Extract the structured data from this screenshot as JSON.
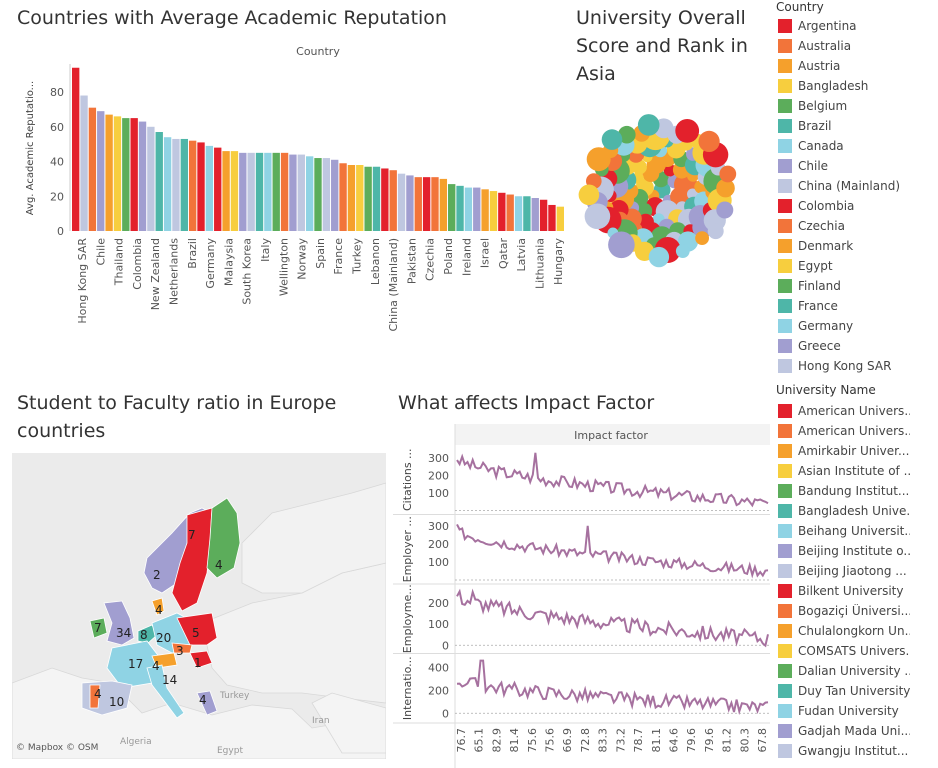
{
  "dashboard": {
    "titles": {
      "bar": "Countries with Average Academic Reputation",
      "bubble": "University Overall Score and Rank in Asia",
      "map": "Student to Faculty ratio in Europe countries",
      "lines": "What affects Impact Factor"
    },
    "map_credit": "© Mapbox  © OSM",
    "map_labels": {
      "turkey": "Turkey",
      "iran": "Iran",
      "algeria": "Algeria",
      "egypt": "Egypt"
    },
    "map_values": [
      "7",
      "4",
      "2",
      "4",
      "7",
      "34",
      "8",
      "20",
      "5",
      "3",
      "1",
      "17",
      "4",
      "14",
      "4",
      "10",
      "4"
    ]
  },
  "legend_country": {
    "title": "Country",
    "items": [
      {
        "label": "Argentina",
        "color": "#e3212c"
      },
      {
        "label": "Australia",
        "color": "#f2743a"
      },
      {
        "label": "Austria",
        "color": "#f5a02c"
      },
      {
        "label": "Bangladesh",
        "color": "#f7ce3e"
      },
      {
        "label": "Belgium",
        "color": "#5cad5b"
      },
      {
        "label": "Brazil",
        "color": "#4eb6a8"
      },
      {
        "label": "Canada",
        "color": "#8fd3e4"
      },
      {
        "label": "Chile",
        "color": "#a19ed0"
      },
      {
        "label": "China (Mainland)",
        "color": "#bfc7e0"
      },
      {
        "label": "Colombia",
        "color": "#e3212c"
      },
      {
        "label": "Czechia",
        "color": "#f2743a"
      },
      {
        "label": "Denmark",
        "color": "#f5a02c"
      },
      {
        "label": "Egypt",
        "color": "#f7ce3e"
      },
      {
        "label": "Finland",
        "color": "#5cad5b"
      },
      {
        "label": "France",
        "color": "#4eb6a8"
      },
      {
        "label": "Germany",
        "color": "#8fd3e4"
      },
      {
        "label": "Greece",
        "color": "#a19ed0"
      },
      {
        "label": "Hong Kong SAR",
        "color": "#bfc7e0"
      }
    ]
  },
  "legend_university": {
    "title": "University Name",
    "items": [
      {
        "label": "American Univers...",
        "color": "#e3212c"
      },
      {
        "label": "American Univers...",
        "color": "#f2743a"
      },
      {
        "label": "Amirkabir Univer...",
        "color": "#f5a02c"
      },
      {
        "label": "Asian Institute of ...",
        "color": "#f7ce3e"
      },
      {
        "label": "Bandung Institut...",
        "color": "#5cad5b"
      },
      {
        "label": "Bangladesh Unive...",
        "color": "#4eb6a8"
      },
      {
        "label": "Beihang Universit...",
        "color": "#8fd3e4"
      },
      {
        "label": "Beijing Institute o...",
        "color": "#a19ed0"
      },
      {
        "label": "Beijing Jiaotong ...",
        "color": "#bfc7e0"
      },
      {
        "label": "Bilkent University",
        "color": "#e3212c"
      },
      {
        "label": "Bogaziçi Üniversi...",
        "color": "#f2743a"
      },
      {
        "label": "Chulalongkorn Un...",
        "color": "#f5a02c"
      },
      {
        "label": "COMSATS Univers...",
        "color": "#f7ce3e"
      },
      {
        "label": "Dalian University ...",
        "color": "#5cad5b"
      },
      {
        "label": "Duy Tan University",
        "color": "#4eb6a8"
      },
      {
        "label": "Fudan University",
        "color": "#8fd3e4"
      },
      {
        "label": "Gadjah Mada Uni...",
        "color": "#a19ed0"
      },
      {
        "label": "Gwangju Institut...",
        "color": "#bfc7e0"
      }
    ]
  },
  "chart_data": [
    {
      "type": "bar",
      "title": "Countries with Average Academic Reputation",
      "column_header": "Country",
      "ylabel": "Avg. Academic Reputatio...",
      "ylim": [
        0,
        95
      ],
      "yticks": [
        0,
        20,
        40,
        60,
        80
      ],
      "tick_labels": [
        "Hong Kong SAR",
        "Chile",
        "Thailand",
        "Colombia",
        "New Zealand",
        "Netherlands",
        "Brazil",
        "Germany",
        "Malaysia",
        "South Korea",
        "Italy",
        "Wellington",
        "Norway",
        "Spain",
        "France",
        "Turkey",
        "Lebanon",
        "China (Mainland)",
        "Pakistan",
        "Czechia",
        "Poland",
        "Ireland",
        "Israel",
        "Qatar",
        "Latvia",
        "Lithuania",
        "Hungary"
      ],
      "values": [
        94,
        78,
        71,
        69,
        67,
        66,
        65,
        65,
        63,
        60,
        57,
        54,
        53,
        53,
        52,
        51,
        49,
        48,
        46,
        46,
        45,
        45,
        45,
        45,
        45,
        45,
        44,
        44,
        43,
        42,
        42,
        41,
        39,
        38,
        38,
        37,
        37,
        36,
        35,
        33,
        32,
        31,
        31,
        31,
        30,
        27,
        26,
        25,
        25,
        24,
        23,
        22,
        21,
        20,
        20,
        19,
        18,
        15,
        14
      ],
      "colors": [
        "#e3212c",
        "#bfc7e0",
        "#f2743a",
        "#a19ed0",
        "#f5a02c",
        "#f7ce3e",
        "#5cad5b",
        "#e3212c",
        "#a19ed0",
        "#bfc7e0",
        "#4eb6a8",
        "#8fd3e4",
        "#bfc7e0",
        "#4eb6a8",
        "#f2743a",
        "#e3212c",
        "#8fd3e4",
        "#e3212c",
        "#f5a02c",
        "#f7ce3e",
        "#a19ed0",
        "#bfc7e0",
        "#4eb6a8",
        "#8fd3e4",
        "#5cad5b",
        "#f2743a",
        "#a19ed0",
        "#bfc7e0",
        "#8fd3e4",
        "#5cad5b",
        "#bfc7e0",
        "#a19ed0",
        "#f2743a",
        "#f5a02c",
        "#f7ce3e",
        "#5cad5b",
        "#4eb6a8",
        "#e3212c",
        "#f2743a",
        "#bfc7e0",
        "#a19ed0",
        "#f2743a",
        "#e3212c",
        "#f2743a",
        "#f5a02c",
        "#5cad5b",
        "#4eb6a8",
        "#8fd3e4",
        "#a19ed0",
        "#f5a02c",
        "#f7ce3e",
        "#e3212c",
        "#f2743a",
        "#8fd3e4",
        "#4eb6a8",
        "#a19ed0",
        "#e3212c",
        "#e3212c",
        "#f7ce3e"
      ]
    },
    {
      "type": "scatter",
      "title": "University Overall Score and Rank in Asia",
      "subtype": "packed bubbles",
      "legend": "right"
    },
    {
      "type": "line",
      "title": "What affects Impact Factor",
      "column_header": "Impact factor",
      "x_tick_labels": [
        "76.7",
        "65.1",
        "82.9",
        "81.4",
        "75.6",
        "75.6",
        "66.9",
        "72.8",
        "83.3",
        "73.2",
        "78.7",
        "81.1",
        "64.6",
        "79.6",
        "79.6",
        "81.2",
        "80.3",
        "67.8"
      ],
      "panels": [
        {
          "name": "Citations ...",
          "yticks": [
            100,
            200,
            300
          ],
          "ylim": [
            0,
            340
          ]
        },
        {
          "name": "Employer ...",
          "yticks": [
            100,
            200,
            300
          ],
          "ylim": [
            0,
            330
          ]
        },
        {
          "name": "Employme...",
          "yticks": [
            0,
            100,
            200
          ],
          "ylim": [
            -20,
            260
          ]
        },
        {
          "name": "Internatio...",
          "yticks": [
            0,
            200,
            400
          ],
          "ylim": [
            -50,
            470
          ]
        }
      ],
      "line_color": "#a6719f"
    }
  ]
}
